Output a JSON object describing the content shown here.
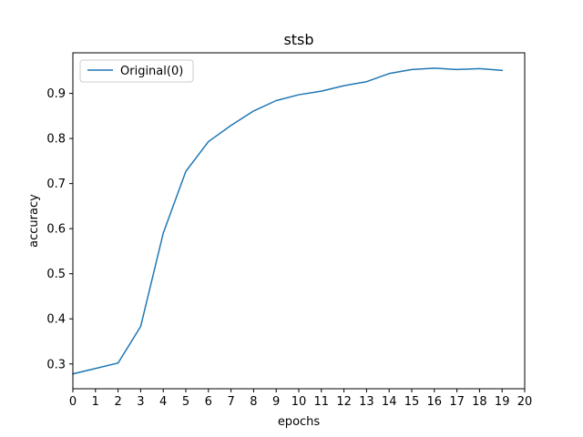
{
  "chart_data": {
    "type": "line",
    "title": "stsb",
    "xlabel": "epochs",
    "ylabel": "accuracy",
    "xlim": [
      0,
      20
    ],
    "ylim": [
      0.245,
      0.99
    ],
    "x_ticks": [
      0,
      1,
      2,
      3,
      4,
      5,
      6,
      7,
      8,
      9,
      10,
      11,
      12,
      13,
      14,
      15,
      16,
      17,
      18,
      19,
      20
    ],
    "y_ticks": [
      0.3,
      0.4,
      0.5,
      0.6,
      0.7,
      0.8,
      0.9
    ],
    "grid": false,
    "legend_position": "top-left",
    "series": [
      {
        "name": "Original(0)",
        "color": "#1f77b4",
        "x": [
          0,
          1,
          2,
          3,
          4,
          5,
          6,
          7,
          8,
          9,
          10,
          11,
          12,
          13,
          14,
          15,
          16,
          17,
          18,
          19
        ],
        "values": [
          0.278,
          0.29,
          0.302,
          0.383,
          0.59,
          0.727,
          0.793,
          0.829,
          0.861,
          0.884,
          0.897,
          0.905,
          0.917,
          0.926,
          0.944,
          0.953,
          0.956,
          0.953,
          0.955,
          0.951
        ]
      }
    ]
  }
}
